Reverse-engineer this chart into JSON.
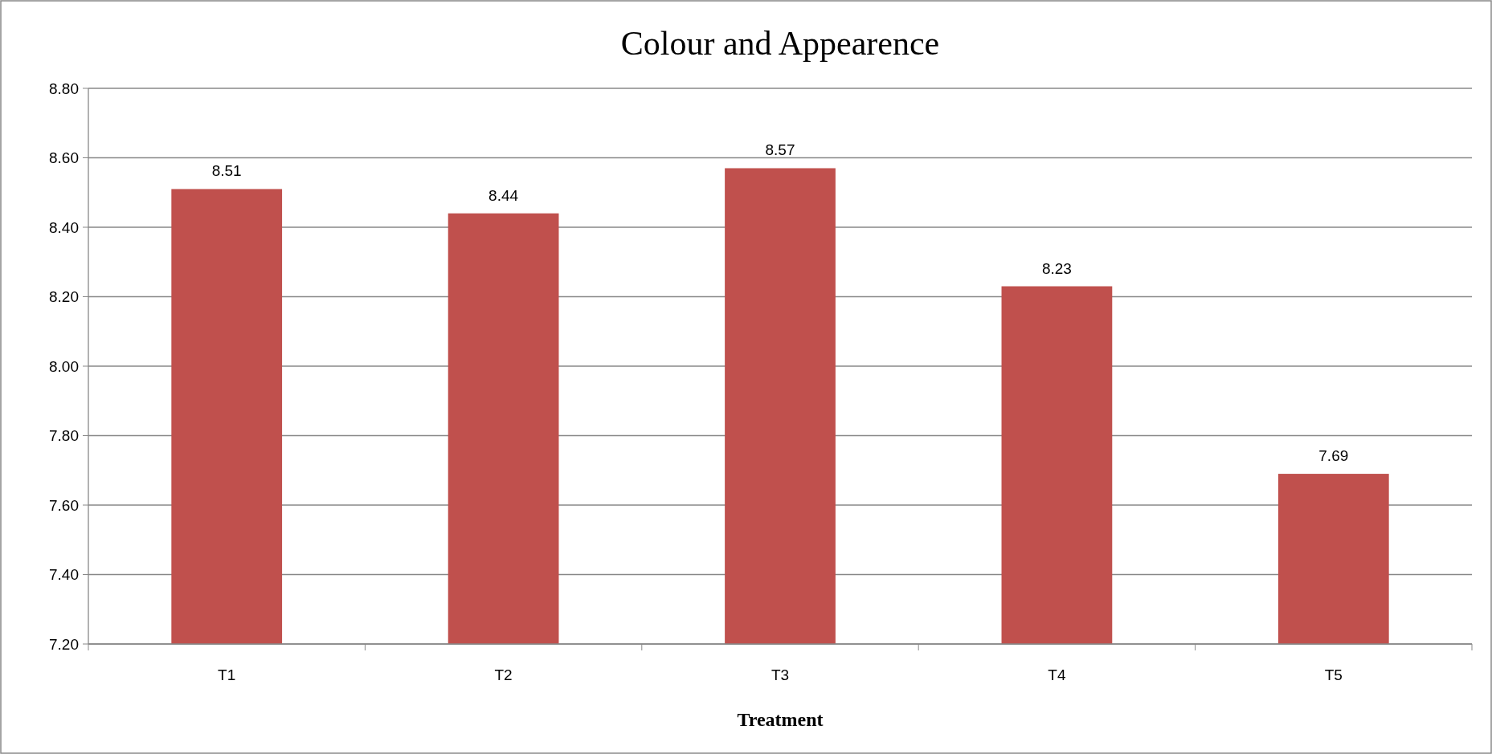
{
  "chart_data": {
    "type": "bar",
    "title": "Colour and Appearence",
    "xlabel": "Treatment",
    "categories": [
      "T1",
      "T2",
      "T3",
      "T4",
      "T5"
    ],
    "values": [
      8.51,
      8.44,
      8.57,
      8.23,
      7.69
    ],
    "color": "#c0504d",
    "ylim": [
      7.2,
      8.8
    ],
    "yticks": [
      {
        "value": 7.2,
        "label": "7.20"
      },
      {
        "value": 7.4,
        "label": "7.40"
      },
      {
        "value": 7.6,
        "label": "7.60"
      },
      {
        "value": 7.8,
        "label": "7.80"
      },
      {
        "value": 8.0,
        "label": "8.00"
      },
      {
        "value": 8.2,
        "label": "8.20"
      },
      {
        "value": 8.4,
        "label": "8.40"
      },
      {
        "value": 8.6,
        "label": "8.60"
      },
      {
        "value": 8.8,
        "label": "8.80"
      }
    ],
    "grid": "y",
    "data_labels": true
  }
}
